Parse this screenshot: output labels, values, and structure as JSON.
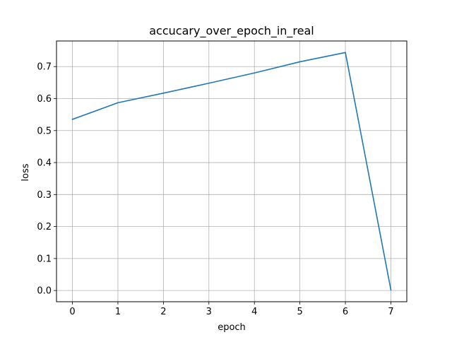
{
  "chart_data": {
    "type": "line",
    "title": "accucary_over_epoch_in_real",
    "xlabel": "epoch",
    "ylabel": "loss",
    "x": [
      0,
      1,
      2,
      3,
      4,
      5,
      6,
      7
    ],
    "series": [
      {
        "values": [
          0.535,
          0.587,
          0.617,
          0.648,
          0.68,
          0.715,
          0.744,
          0.002
        ],
        "color": "#1f77b4"
      }
    ],
    "xticks": [
      "0",
      "1",
      "2",
      "3",
      "4",
      "5",
      "6",
      "7"
    ],
    "yticks": [
      "0.0",
      "0.1",
      "0.2",
      "0.3",
      "0.4",
      "0.5",
      "0.6",
      "0.7"
    ],
    "xlim": [
      -0.35,
      7.35
    ],
    "ylim": [
      -0.035,
      0.78
    ],
    "grid": true,
    "legend": "none"
  }
}
